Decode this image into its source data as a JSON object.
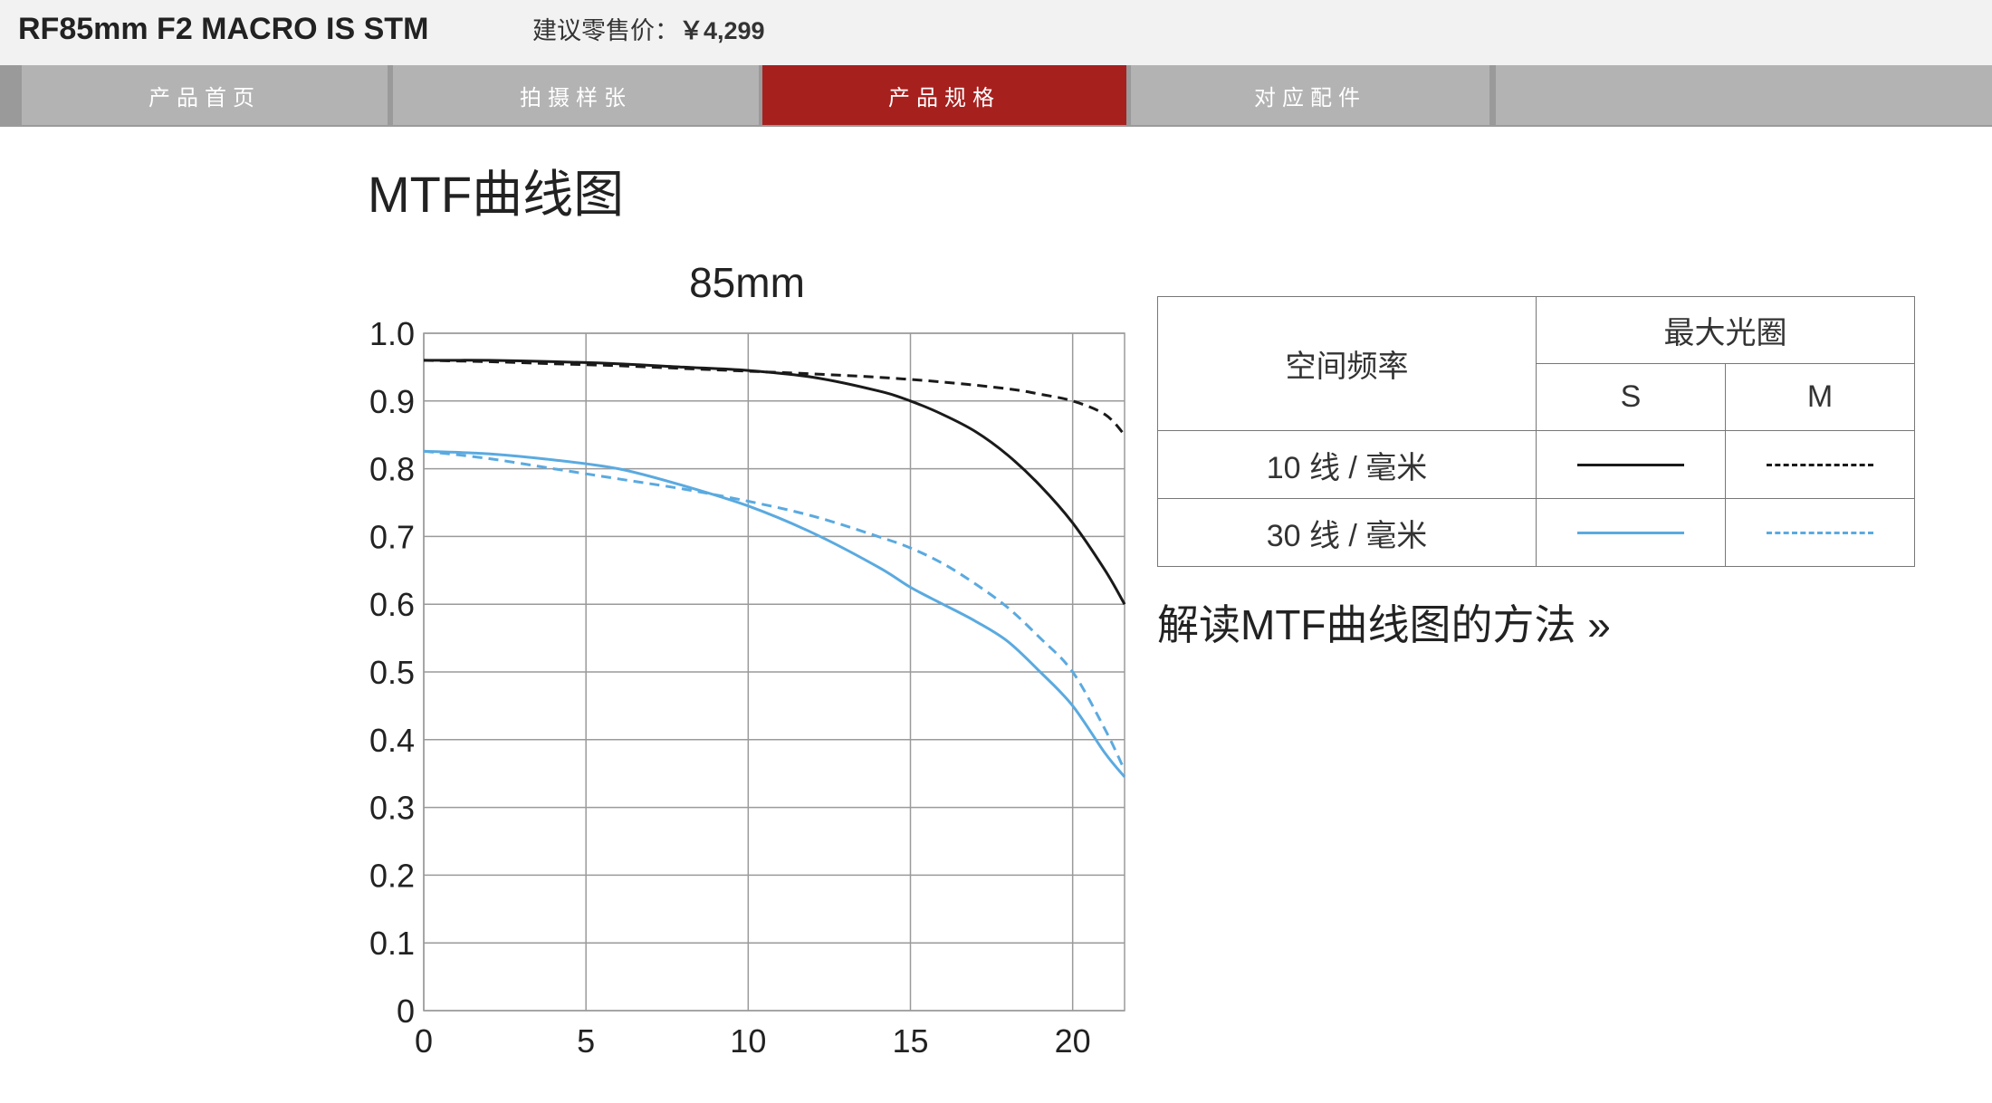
{
  "header": {
    "product_name": "RF85mm F2 MACRO IS STM",
    "price_label": "建议零售价：",
    "price_value": "￥4,299"
  },
  "tabs": [
    {
      "label": "产品首页",
      "active": false
    },
    {
      "label": "拍摄样张",
      "active": false
    },
    {
      "label": "产品规格",
      "active": true
    },
    {
      "label": "对应配件",
      "active": false
    }
  ],
  "section": {
    "title": "MTF曲线图",
    "link_text": "解读MTF曲线图的方法 »"
  },
  "legend_table": {
    "row_header": "空间频率",
    "col_header": "最大光圈",
    "col_s": "S",
    "col_m": "M",
    "rows": [
      {
        "label": "10 线 / 毫米",
        "color": "#1a1a1a"
      },
      {
        "label": "30 线 / 毫米",
        "color": "#5aaae0"
      }
    ]
  },
  "chart_data": {
    "type": "line",
    "title": "85mm",
    "xlabel": "",
    "ylabel": "",
    "xlim": [
      0,
      21.6
    ],
    "ylim": [
      0,
      1.0
    ],
    "x_ticks": [
      "0",
      "5",
      "10",
      "15",
      "20"
    ],
    "y_ticks": [
      "0",
      "0.1",
      "0.2",
      "0.3",
      "0.4",
      "0.5",
      "0.6",
      "0.7",
      "0.8",
      "0.9",
      "1.0"
    ],
    "grid": true,
    "series": [
      {
        "name": "10 线 / 毫米 S",
        "color": "#1a1a1a",
        "dashed": false,
        "x": [
          0,
          2,
          4,
          6,
          8,
          10,
          12,
          14,
          15,
          16,
          17,
          18,
          19,
          20,
          21,
          21.6
        ],
        "y": [
          0.96,
          0.96,
          0.958,
          0.955,
          0.95,
          0.945,
          0.935,
          0.915,
          0.9,
          0.88,
          0.855,
          0.82,
          0.775,
          0.72,
          0.65,
          0.6
        ]
      },
      {
        "name": "10 线 / 毫米 M",
        "color": "#1a1a1a",
        "dashed": true,
        "x": [
          0,
          2,
          4,
          6,
          8,
          10,
          12,
          14,
          16,
          18,
          19,
          20,
          21,
          21.6
        ],
        "y": [
          0.96,
          0.958,
          0.955,
          0.952,
          0.948,
          0.944,
          0.94,
          0.935,
          0.928,
          0.918,
          0.91,
          0.9,
          0.88,
          0.85
        ]
      },
      {
        "name": "30 线 / 毫米 S",
        "color": "#5aaae0",
        "dashed": false,
        "x": [
          0,
          2,
          4,
          6,
          8,
          10,
          12,
          14,
          15,
          16,
          17,
          18,
          19,
          20,
          21,
          21.6
        ],
        "y": [
          0.826,
          0.822,
          0.813,
          0.8,
          0.775,
          0.745,
          0.705,
          0.655,
          0.625,
          0.6,
          0.575,
          0.545,
          0.5,
          0.45,
          0.38,
          0.345
        ]
      },
      {
        "name": "30 线 / 毫米 M",
        "color": "#5aaae0",
        "dashed": true,
        "x": [
          0,
          2,
          4,
          6,
          8,
          10,
          12,
          14,
          15,
          16,
          17,
          18,
          19,
          20,
          21,
          21.6
        ],
        "y": [
          0.826,
          0.815,
          0.8,
          0.785,
          0.77,
          0.752,
          0.73,
          0.7,
          0.683,
          0.66,
          0.63,
          0.595,
          0.55,
          0.5,
          0.415,
          0.355
        ]
      }
    ]
  }
}
